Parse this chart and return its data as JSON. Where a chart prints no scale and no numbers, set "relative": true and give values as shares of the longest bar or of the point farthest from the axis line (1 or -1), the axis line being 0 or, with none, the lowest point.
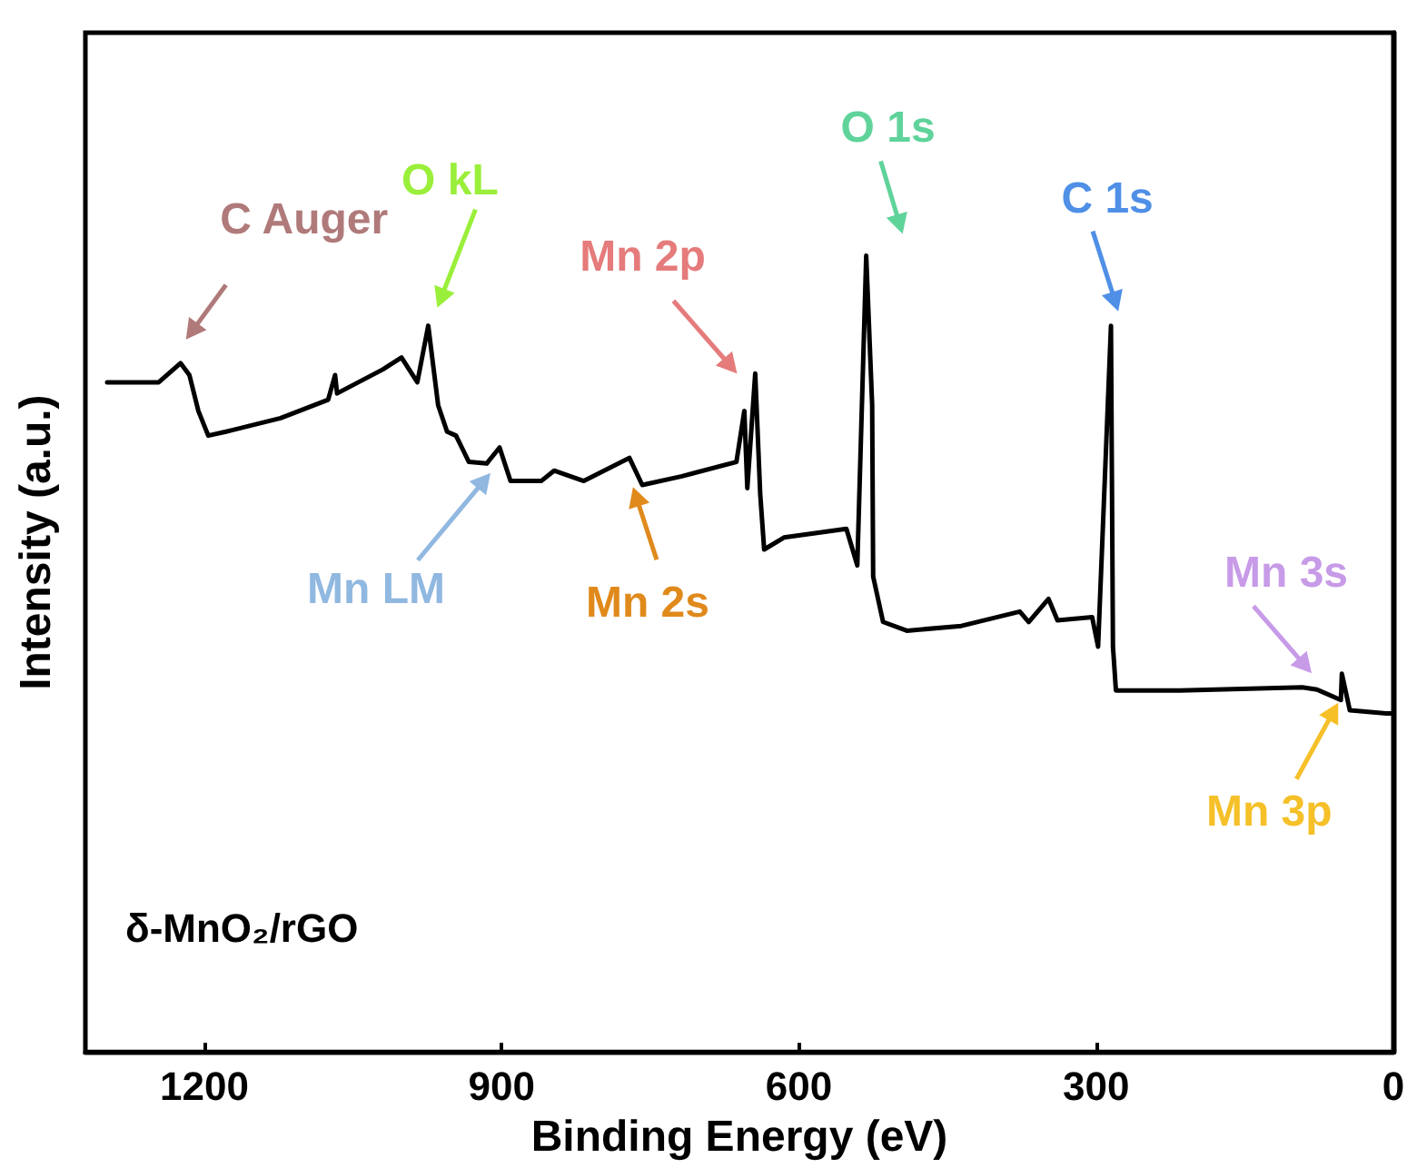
{
  "chart_data": {
    "type": "line",
    "xlabel": "Binding Energy (eV)",
    "ylabel": "Intensity (a.u.)",
    "relative": true,
    "xlim": [
      1320,
      0
    ],
    "xticks": [
      1200,
      900,
      600,
      300,
      0
    ],
    "marker": "none",
    "grid": false,
    "series": [
      {
        "color": "#000000",
        "x": [
          1298,
          1246,
          1224,
          1215,
          1206,
          1196,
          1178,
          1123,
          1075,
          1068,
          1066,
          1020,
          1001,
          985,
          974,
          964,
          955,
          946,
          933,
          915,
          902,
          891,
          860,
          847,
          817,
          771,
          758,
          718,
          663,
          655,
          652,
          644,
          639,
          635,
          615,
          552,
          541,
          532,
          526,
          525,
          515,
          491,
          436,
          377,
          368,
          348,
          339,
          304,
          298,
          285,
          283,
          280,
          215,
          92,
          77,
          53,
          52,
          44,
          7,
          2
        ],
        "values": [
          0.841,
          0.841,
          0.865,
          0.85,
          0.805,
          0.774,
          0.779,
          0.796,
          0.819,
          0.85,
          0.827,
          0.857,
          0.872,
          0.841,
          0.912,
          0.812,
          0.779,
          0.774,
          0.741,
          0.739,
          0.759,
          0.717,
          0.717,
          0.73,
          0.717,
          0.746,
          0.712,
          0.723,
          0.741,
          0.805,
          0.708,
          0.852,
          0.701,
          0.631,
          0.646,
          0.657,
          0.611,
          1.0,
          0.812,
          0.597,
          0.54,
          0.529,
          0.535,
          0.553,
          0.54,
          0.569,
          0.542,
          0.546,
          0.509,
          0.912,
          0.509,
          0.454,
          0.454,
          0.458,
          0.455,
          0.442,
          0.475,
          0.429,
          0.425,
          0.425
        ]
      }
    ],
    "annotations": [
      {
        "text": "C Auger",
        "x": 1224,
        "y": 0.865
      },
      {
        "text": "O kL",
        "x": 974,
        "y": 0.912
      },
      {
        "text": "Mn 2p",
        "x": 644,
        "y": 0.852
      },
      {
        "text": "O 1s",
        "x": 532,
        "y": 1.0
      },
      {
        "text": "C 1s",
        "x": 285,
        "y": 0.912
      },
      {
        "text": "Mn LM",
        "x": 902,
        "y": 0.759
      },
      {
        "text": "Mn 2s",
        "x": 771,
        "y": 0.746
      },
      {
        "text": "Mn 3s",
        "x": 77,
        "y": 0.455
      },
      {
        "text": "Mn 3p",
        "x": 52,
        "y": 0.475
      },
      "δ-MnO₂/rGO"
    ]
  }
}
